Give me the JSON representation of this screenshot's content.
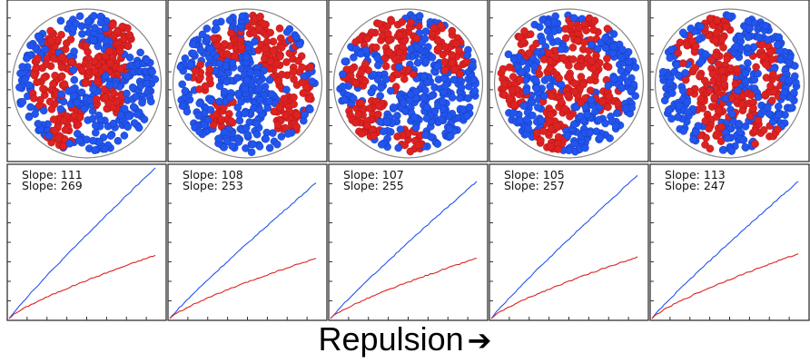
{
  "colors": {
    "blue": "#2255ee",
    "red": "#dd2222",
    "grid": "#222222"
  },
  "xlabel": {
    "text": "Repulsion",
    "arrow": "➔"
  },
  "panels_top": [
    {
      "seed": 11
    },
    {
      "seed": 23
    },
    {
      "seed": 37
    },
    {
      "seed": 51
    },
    {
      "seed": 67
    }
  ],
  "chart_data": [
    {
      "type": "line",
      "slope_labels": [
        "Slope: 111",
        "Slope: 269"
      ],
      "series": [
        {
          "color": "blue",
          "end": [
            1.0,
            1.0
          ]
        },
        {
          "color": "red",
          "end": [
            1.0,
            0.42
          ]
        }
      ]
    },
    {
      "type": "line",
      "slope_labels": [
        "Slope: 108",
        "Slope: 253"
      ],
      "series": [
        {
          "color": "blue",
          "end": [
            1.0,
            0.9
          ]
        },
        {
          "color": "red",
          "end": [
            1.0,
            0.4
          ]
        }
      ]
    },
    {
      "type": "line",
      "slope_labels": [
        "Slope: 107",
        "Slope: 255"
      ],
      "series": [
        {
          "color": "blue",
          "end": [
            1.0,
            0.91
          ]
        },
        {
          "color": "red",
          "end": [
            1.0,
            0.4
          ]
        }
      ]
    },
    {
      "type": "line",
      "slope_labels": [
        "Slope: 105",
        "Slope: 257"
      ],
      "series": [
        {
          "color": "blue",
          "end": [
            1.0,
            0.95
          ]
        },
        {
          "color": "red",
          "end": [
            1.0,
            0.41
          ]
        }
      ]
    },
    {
      "type": "line",
      "slope_labels": [
        "Slope: 113",
        "Slope: 247"
      ],
      "series": [
        {
          "color": "blue",
          "end": [
            1.0,
            0.91
          ]
        },
        {
          "color": "red",
          "end": [
            1.0,
            0.43
          ]
        }
      ]
    }
  ]
}
